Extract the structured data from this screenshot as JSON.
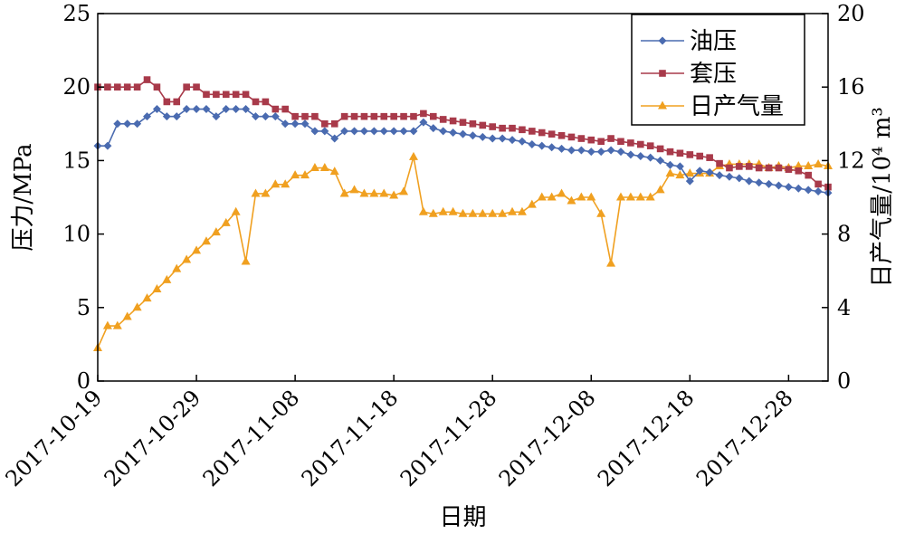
{
  "chart_data": {
    "type": "line",
    "xlabel": "日期",
    "ylabel_left": "压力/MPa",
    "ylabel_right": "日产气量/10⁴ m³",
    "ylim_left": [
      0,
      25
    ],
    "ylim_right": [
      0,
      20
    ],
    "left_ticks": [
      0,
      5,
      10,
      15,
      20,
      25
    ],
    "right_ticks": [
      0,
      4,
      8,
      12,
      16,
      20
    ],
    "x_range": [
      "2017-10-19",
      "2018-01-01"
    ],
    "x_tick_labels": [
      "2017-10-19",
      "2017-10-29",
      "2017-11-08",
      "2017-11-18",
      "2017-11-28",
      "2017-12-08",
      "2017-12-18",
      "2017-12-28"
    ],
    "legend_position": "top-right",
    "series": [
      {
        "name": "油压",
        "axis": "left",
        "color": "#4a6bb0",
        "marker": "diamond",
        "points": [
          [
            "2017-10-19",
            16
          ],
          [
            "2017-10-20",
            16
          ],
          [
            "2017-10-21",
            17.5
          ],
          [
            "2017-10-22",
            17.5
          ],
          [
            "2017-10-23",
            17.5
          ],
          [
            "2017-10-24",
            18
          ],
          [
            "2017-10-25",
            18.5
          ],
          [
            "2017-10-26",
            18
          ],
          [
            "2017-10-27",
            18
          ],
          [
            "2017-10-28",
            18.5
          ],
          [
            "2017-10-29",
            18.5
          ],
          [
            "2017-10-30",
            18.5
          ],
          [
            "2017-10-31",
            18
          ],
          [
            "2017-11-01",
            18.5
          ],
          [
            "2017-11-02",
            18.5
          ],
          [
            "2017-11-03",
            18.5
          ],
          [
            "2017-11-04",
            18
          ],
          [
            "2017-11-05",
            18
          ],
          [
            "2017-11-06",
            18
          ],
          [
            "2017-11-07",
            17.5
          ],
          [
            "2017-11-08",
            17.5
          ],
          [
            "2017-11-09",
            17.5
          ],
          [
            "2017-11-10",
            17
          ],
          [
            "2017-11-11",
            17
          ],
          [
            "2017-11-12",
            16.5
          ],
          [
            "2017-11-13",
            17
          ],
          [
            "2017-11-14",
            17
          ],
          [
            "2017-11-15",
            17
          ],
          [
            "2017-11-16",
            17
          ],
          [
            "2017-11-17",
            17
          ],
          [
            "2017-11-18",
            17
          ],
          [
            "2017-11-19",
            17
          ],
          [
            "2017-11-20",
            17
          ],
          [
            "2017-11-21",
            17.6
          ],
          [
            "2017-11-22",
            17.2
          ],
          [
            "2017-11-23",
            17
          ],
          [
            "2017-11-24",
            16.9
          ],
          [
            "2017-11-25",
            16.8
          ],
          [
            "2017-11-26",
            16.7
          ],
          [
            "2017-11-27",
            16.6
          ],
          [
            "2017-11-28",
            16.5
          ],
          [
            "2017-11-29",
            16.5
          ],
          [
            "2017-11-30",
            16.4
          ],
          [
            "2017-12-01",
            16.3
          ],
          [
            "2017-12-02",
            16.1
          ],
          [
            "2017-12-03",
            16
          ],
          [
            "2017-12-04",
            15.9
          ],
          [
            "2017-12-05",
            15.8
          ],
          [
            "2017-12-06",
            15.7
          ],
          [
            "2017-12-07",
            15.7
          ],
          [
            "2017-12-08",
            15.6
          ],
          [
            "2017-12-09",
            15.6
          ],
          [
            "2017-12-10",
            15.7
          ],
          [
            "2017-12-11",
            15.6
          ],
          [
            "2017-12-12",
            15.4
          ],
          [
            "2017-12-13",
            15.3
          ],
          [
            "2017-12-14",
            15.2
          ],
          [
            "2017-12-15",
            15
          ],
          [
            "2017-12-16",
            14.7
          ],
          [
            "2017-12-17",
            14.6
          ],
          [
            "2017-12-18",
            13.6
          ],
          [
            "2017-12-19",
            14.3
          ],
          [
            "2017-12-20",
            14.2
          ],
          [
            "2017-12-21",
            14
          ],
          [
            "2017-12-22",
            13.9
          ],
          [
            "2017-12-23",
            13.8
          ],
          [
            "2017-12-24",
            13.6
          ],
          [
            "2017-12-25",
            13.5
          ],
          [
            "2017-12-26",
            13.4
          ],
          [
            "2017-12-27",
            13.3
          ],
          [
            "2017-12-28",
            13.2
          ],
          [
            "2017-12-29",
            13.1
          ],
          [
            "2017-12-30",
            13
          ],
          [
            "2017-12-31",
            12.9
          ],
          [
            "2018-01-01",
            12.8
          ]
        ]
      },
      {
        "name": "套压",
        "axis": "left",
        "color": "#a83a4a",
        "marker": "square",
        "points": [
          [
            "2017-10-19",
            20
          ],
          [
            "2017-10-20",
            20
          ],
          [
            "2017-10-21",
            20
          ],
          [
            "2017-10-22",
            20
          ],
          [
            "2017-10-23",
            20
          ],
          [
            "2017-10-24",
            20.5
          ],
          [
            "2017-10-25",
            20
          ],
          [
            "2017-10-26",
            19
          ],
          [
            "2017-10-27",
            19
          ],
          [
            "2017-10-28",
            20
          ],
          [
            "2017-10-29",
            20
          ],
          [
            "2017-10-30",
            19.5
          ],
          [
            "2017-10-31",
            19.5
          ],
          [
            "2017-11-01",
            19.5
          ],
          [
            "2017-11-02",
            19.5
          ],
          [
            "2017-11-03",
            19.5
          ],
          [
            "2017-11-04",
            19
          ],
          [
            "2017-11-05",
            19
          ],
          [
            "2017-11-06",
            18.5
          ],
          [
            "2017-11-07",
            18.5
          ],
          [
            "2017-11-08",
            18
          ],
          [
            "2017-11-09",
            18
          ],
          [
            "2017-11-10",
            18
          ],
          [
            "2017-11-11",
            17.5
          ],
          [
            "2017-11-12",
            17.5
          ],
          [
            "2017-11-13",
            18
          ],
          [
            "2017-11-14",
            18
          ],
          [
            "2017-11-15",
            18
          ],
          [
            "2017-11-16",
            18
          ],
          [
            "2017-11-17",
            18
          ],
          [
            "2017-11-18",
            18
          ],
          [
            "2017-11-19",
            18
          ],
          [
            "2017-11-20",
            18
          ],
          [
            "2017-11-21",
            18.2
          ],
          [
            "2017-11-22",
            18
          ],
          [
            "2017-11-23",
            17.8
          ],
          [
            "2017-11-24",
            17.7
          ],
          [
            "2017-11-25",
            17.6
          ],
          [
            "2017-11-26",
            17.5
          ],
          [
            "2017-11-27",
            17.4
          ],
          [
            "2017-11-28",
            17.3
          ],
          [
            "2017-11-29",
            17.2
          ],
          [
            "2017-11-30",
            17.2
          ],
          [
            "2017-12-01",
            17.1
          ],
          [
            "2017-12-02",
            17
          ],
          [
            "2017-12-03",
            16.9
          ],
          [
            "2017-12-04",
            16.8
          ],
          [
            "2017-12-05",
            16.7
          ],
          [
            "2017-12-06",
            16.6
          ],
          [
            "2017-12-07",
            16.5
          ],
          [
            "2017-12-08",
            16.4
          ],
          [
            "2017-12-09",
            16.3
          ],
          [
            "2017-12-10",
            16.5
          ],
          [
            "2017-12-11",
            16.3
          ],
          [
            "2017-12-12",
            16.2
          ],
          [
            "2017-12-13",
            16.1
          ],
          [
            "2017-12-14",
            16
          ],
          [
            "2017-12-15",
            15.8
          ],
          [
            "2017-12-16",
            15.6
          ],
          [
            "2017-12-17",
            15.5
          ],
          [
            "2017-12-18",
            15.4
          ],
          [
            "2017-12-19",
            15.3
          ],
          [
            "2017-12-20",
            15.2
          ],
          [
            "2017-12-21",
            14.8
          ],
          [
            "2017-12-22",
            14.5
          ],
          [
            "2017-12-23",
            14.6
          ],
          [
            "2017-12-24",
            14.6
          ],
          [
            "2017-12-25",
            14.5
          ],
          [
            "2017-12-26",
            14.5
          ],
          [
            "2017-12-27",
            14.5
          ],
          [
            "2017-12-28",
            14.4
          ],
          [
            "2017-12-29",
            14.3
          ],
          [
            "2017-12-30",
            14
          ],
          [
            "2017-12-31",
            13.4
          ],
          [
            "2018-01-01",
            13.2
          ]
        ]
      },
      {
        "name": "日产气量",
        "axis": "right",
        "color": "#f0a020",
        "marker": "triangle",
        "points": [
          [
            "2017-10-19",
            1.8
          ],
          [
            "2017-10-20",
            3
          ],
          [
            "2017-10-21",
            3
          ],
          [
            "2017-10-22",
            3.5
          ],
          [
            "2017-10-23",
            4
          ],
          [
            "2017-10-24",
            4.5
          ],
          [
            "2017-10-25",
            5
          ],
          [
            "2017-10-26",
            5.5
          ],
          [
            "2017-10-27",
            6.1
          ],
          [
            "2017-10-28",
            6.6
          ],
          [
            "2017-10-29",
            7.1
          ],
          [
            "2017-10-30",
            7.6
          ],
          [
            "2017-10-31",
            8.1
          ],
          [
            "2017-11-01",
            8.6
          ],
          [
            "2017-11-02",
            9.2
          ],
          [
            "2017-11-03",
            6.5
          ],
          [
            "2017-11-04",
            10.2
          ],
          [
            "2017-11-05",
            10.2
          ],
          [
            "2017-11-06",
            10.7
          ],
          [
            "2017-11-07",
            10.7
          ],
          [
            "2017-11-08",
            11.2
          ],
          [
            "2017-11-09",
            11.2
          ],
          [
            "2017-11-10",
            11.6
          ],
          [
            "2017-11-11",
            11.6
          ],
          [
            "2017-11-12",
            11.4
          ],
          [
            "2017-11-13",
            10.2
          ],
          [
            "2017-11-14",
            10.4
          ],
          [
            "2017-11-15",
            10.2
          ],
          [
            "2017-11-16",
            10.2
          ],
          [
            "2017-11-17",
            10.2
          ],
          [
            "2017-11-18",
            10.1
          ],
          [
            "2017-11-19",
            10.3
          ],
          [
            "2017-11-20",
            12.2
          ],
          [
            "2017-11-21",
            9.2
          ],
          [
            "2017-11-22",
            9.1
          ],
          [
            "2017-11-23",
            9.2
          ],
          [
            "2017-11-24",
            9.2
          ],
          [
            "2017-11-25",
            9.1
          ],
          [
            "2017-11-26",
            9.1
          ],
          [
            "2017-11-27",
            9.1
          ],
          [
            "2017-11-28",
            9.1
          ],
          [
            "2017-11-29",
            9.1
          ],
          [
            "2017-11-30",
            9.2
          ],
          [
            "2017-12-01",
            9.2
          ],
          [
            "2017-12-02",
            9.6
          ],
          [
            "2017-12-03",
            10
          ],
          [
            "2017-12-04",
            10
          ],
          [
            "2017-12-05",
            10.2
          ],
          [
            "2017-12-06",
            9.8
          ],
          [
            "2017-12-07",
            10
          ],
          [
            "2017-12-08",
            10
          ],
          [
            "2017-12-09",
            9.1
          ],
          [
            "2017-12-10",
            6.4
          ],
          [
            "2017-12-11",
            10
          ],
          [
            "2017-12-12",
            10
          ],
          [
            "2017-12-13",
            10
          ],
          [
            "2017-12-14",
            10
          ],
          [
            "2017-12-15",
            10.4
          ],
          [
            "2017-12-16",
            11.3
          ],
          [
            "2017-12-17",
            11.2
          ],
          [
            "2017-12-18",
            11.3
          ],
          [
            "2017-12-19",
            11.3
          ],
          [
            "2017-12-20",
            11.3
          ],
          [
            "2017-12-21",
            11.7
          ],
          [
            "2017-12-22",
            11.8
          ],
          [
            "2017-12-23",
            11.8
          ],
          [
            "2017-12-24",
            11.8
          ],
          [
            "2017-12-25",
            11.8
          ],
          [
            "2017-12-26",
            11.6
          ],
          [
            "2017-12-27",
            11.7
          ],
          [
            "2017-12-28",
            11.6
          ],
          [
            "2017-12-29",
            11.7
          ],
          [
            "2017-12-30",
            11.7
          ],
          [
            "2017-12-31",
            11.8
          ],
          [
            "2018-01-01",
            11.7
          ]
        ]
      }
    ]
  }
}
